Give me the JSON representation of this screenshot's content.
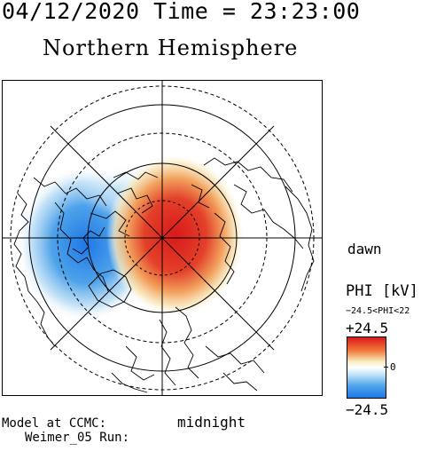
{
  "header": {
    "datetime": "04/12/2020 Time = 23:23:00",
    "title": "Northern Hemisphere"
  },
  "map": {
    "projection": "polar stereographic, north pole centered",
    "direction_labels": {
      "right": "dawn",
      "bottom": "midnight"
    },
    "features": [
      "latitude-circles",
      "meridian-lines",
      "coastlines",
      "potential-contours"
    ]
  },
  "colorbar": {
    "title": "PHI [kV]",
    "range_text": "−24.5<PHI<22",
    "max_label": "+24.5",
    "zero_label": "0",
    "min_label": "−24.5",
    "colors": {
      "positive": "#d91a1a",
      "neutral": "#ffffff",
      "negative": "#1e78e6"
    }
  },
  "footer": {
    "model": "Model at CCMC:",
    "run": "Weimer_05 Run:"
  }
}
